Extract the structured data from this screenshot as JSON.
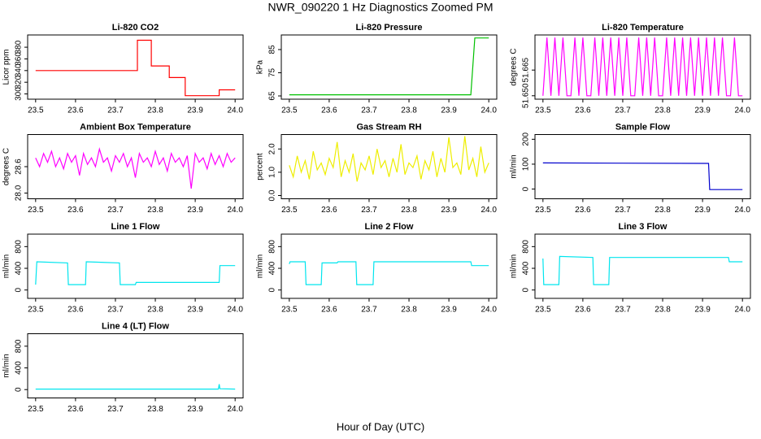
{
  "title": "NWR_090220  1 Hz Diagnostics Zoomed PM",
  "xlabel": "Hour of Day (UTC)",
  "chart_data": [
    {
      "type": "line",
      "title": "Li-820 CO2",
      "ylabel": "Licor ppm",
      "color": "#ff0000",
      "xlim": [
        23.48,
        24.02
      ],
      "xticks": [
        23.5,
        23.6,
        23.7,
        23.8,
        23.9,
        {
          "value": 24,
          "label": "24.0"
        }
      ],
      "ylim": [
        291,
        401
      ],
      "yticks": [
        300,
        320,
        340,
        360,
        380
      ],
      "x": [
        23.5,
        23.755,
        23.755,
        23.79,
        23.79,
        23.835,
        23.835,
        23.875,
        23.875,
        23.96,
        23.96,
        24.0
      ],
      "values": [
        340,
        340,
        392,
        392,
        348,
        348,
        328,
        328,
        297,
        297,
        307,
        307
      ]
    },
    {
      "type": "line",
      "title": "Li-820 Pressure",
      "ylabel": "kPa",
      "color": "#00c000",
      "xlim": [
        23.48,
        24.02
      ],
      "xticks": [
        23.5,
        23.6,
        23.7,
        23.8,
        23.9,
        {
          "value": 24,
          "label": "24.0"
        }
      ],
      "ylim": [
        63.6,
        91.3
      ],
      "yticks": [
        65,
        75,
        85
      ],
      "x": [
        23.5,
        23.955,
        23.965,
        24.0
      ],
      "values": [
        65.5,
        65.5,
        90,
        90
      ]
    },
    {
      "type": "line",
      "title": "Li-820 Temperature",
      "ylabel": "degrees C",
      "color": "#ff00ff",
      "xlim": [
        23.48,
        24.02
      ],
      "xticks": [
        23.5,
        23.6,
        23.7,
        23.8,
        23.9,
        {
          "value": 24,
          "label": "24.0"
        }
      ],
      "ylim": [
        51.648,
        51.6855
      ],
      "yticks": [
        {
          "value": 51.65,
          "label": "51.650"
        },
        {
          "value": 51.665,
          "label": "51.665"
        }
      ],
      "x": [
        23.5,
        23.51,
        23.52,
        23.53,
        23.54,
        23.55,
        23.56,
        23.57,
        23.58,
        23.59,
        23.6,
        23.61,
        23.62,
        23.63,
        23.64,
        23.65,
        23.66,
        23.67,
        23.68,
        23.69,
        23.7,
        23.71,
        23.72,
        23.73,
        23.74,
        23.75,
        23.76,
        23.77,
        23.78,
        23.79,
        23.8,
        23.81,
        23.82,
        23.83,
        23.84,
        23.85,
        23.86,
        23.87,
        23.88,
        23.89,
        23.9,
        23.91,
        23.92,
        23.93,
        23.94,
        23.95,
        23.96,
        23.97,
        23.98,
        23.99,
        24.0
      ],
      "values": [
        51.65,
        51.684,
        51.65,
        51.684,
        51.65,
        51.684,
        51.65,
        51.65,
        51.684,
        51.65,
        51.684,
        51.65,
        51.65,
        51.684,
        51.65,
        51.684,
        51.65,
        51.684,
        51.65,
        51.684,
        51.65,
        51.684,
        51.65,
        51.65,
        51.684,
        51.65,
        51.684,
        51.65,
        51.684,
        51.65,
        51.65,
        51.684,
        51.65,
        51.684,
        51.65,
        51.684,
        51.65,
        51.684,
        51.65,
        51.684,
        51.65,
        51.684,
        51.65,
        51.684,
        51.65,
        51.684,
        51.65,
        51.65,
        51.684,
        51.65,
        51.65
      ]
    },
    {
      "type": "line",
      "title": "Ambient Box Temperature",
      "ylabel": "degrees C",
      "color": "#ff00ff",
      "xlim": [
        23.48,
        24.02
      ],
      "xticks": [
        23.5,
        23.6,
        23.7,
        23.8,
        23.9,
        {
          "value": 24,
          "label": "24.0"
        }
      ],
      "ylim": [
        27.87,
        29.33
      ],
      "yticks": [
        {
          "value": 28,
          "label": "28.0"
        },
        28.6
      ],
      "x": [
        23.5,
        23.51,
        23.52,
        23.53,
        23.54,
        23.55,
        23.56,
        23.57,
        23.58,
        23.59,
        23.6,
        23.61,
        23.62,
        23.63,
        23.64,
        23.65,
        23.66,
        23.67,
        23.68,
        23.69,
        23.7,
        23.71,
        23.72,
        23.73,
        23.74,
        23.75,
        23.76,
        23.77,
        23.78,
        23.79,
        23.8,
        23.81,
        23.82,
        23.83,
        23.84,
        23.85,
        23.86,
        23.87,
        23.88,
        23.89,
        23.9,
        23.91,
        23.92,
        23.93,
        23.94,
        23.95,
        23.96,
        23.97,
        23.98,
        23.99,
        24.0
      ],
      "values": [
        28.8,
        28.6,
        28.9,
        28.7,
        28.95,
        28.6,
        28.8,
        28.55,
        28.9,
        28.7,
        28.85,
        28.4,
        28.9,
        28.65,
        28.8,
        28.6,
        29.0,
        28.7,
        28.8,
        28.5,
        28.85,
        28.7,
        28.9,
        28.6,
        28.8,
        28.35,
        28.9,
        28.7,
        28.8,
        28.6,
        28.95,
        28.65,
        28.8,
        28.5,
        28.9,
        28.7,
        28.8,
        28.6,
        28.85,
        28.1,
        28.9,
        28.7,
        28.8,
        28.55,
        28.9,
        28.65,
        28.85,
        28.6,
        28.9,
        28.7,
        28.8
      ]
    },
    {
      "type": "line",
      "title": "Gas Stream RH",
      "ylabel": "percent",
      "color": "#eeee00",
      "xlim": [
        23.48,
        24.02
      ],
      "xticks": [
        23.5,
        23.6,
        23.7,
        23.8,
        23.9,
        {
          "value": 24,
          "label": "24.0"
        }
      ],
      "ylim": [
        -0.14,
        2.62
      ],
      "yticks": [
        {
          "value": 0,
          "label": "0.0"
        },
        {
          "value": 1,
          "label": "1.0"
        },
        {
          "value": 2,
          "label": "2.0"
        }
      ],
      "x": [
        23.5,
        23.51,
        23.52,
        23.53,
        23.54,
        23.55,
        23.56,
        23.57,
        23.58,
        23.59,
        23.6,
        23.61,
        23.62,
        23.63,
        23.64,
        23.65,
        23.66,
        23.67,
        23.68,
        23.69,
        23.7,
        23.71,
        23.72,
        23.73,
        23.74,
        23.75,
        23.76,
        23.77,
        23.78,
        23.79,
        23.8,
        23.81,
        23.82,
        23.83,
        23.84,
        23.85,
        23.86,
        23.87,
        23.88,
        23.89,
        23.9,
        23.91,
        23.92,
        23.93,
        23.94,
        23.95,
        23.96,
        23.97,
        23.98,
        23.99,
        24.0
      ],
      "values": [
        1.3,
        0.8,
        1.7,
        1.0,
        1.5,
        0.7,
        1.9,
        1.1,
        1.4,
        0.9,
        1.6,
        1.2,
        2.3,
        0.8,
        1.5,
        1.0,
        1.8,
        0.6,
        1.4,
        1.1,
        1.7,
        0.9,
        2.0,
        1.2,
        1.5,
        0.8,
        1.6,
        1.0,
        2.2,
        0.9,
        1.4,
        1.2,
        1.7,
        0.7,
        1.5,
        1.1,
        1.9,
        0.8,
        1.6,
        1.0,
        2.5,
        1.2,
        1.4,
        0.9,
        2.55,
        1.1,
        1.6,
        0.8,
        2.1,
        1.0,
        1.4
      ]
    },
    {
      "type": "line",
      "title": "Sample Flow",
      "ylabel": "ml/min",
      "color": "#0000cd",
      "xlim": [
        23.48,
        24.02
      ],
      "xticks": [
        23.5,
        23.6,
        23.7,
        23.8,
        23.9,
        {
          "value": 24,
          "label": "24.0"
        }
      ],
      "ylim": [
        -39,
        219
      ],
      "yticks": [
        0,
        100,
        200
      ],
      "x": [
        23.5,
        23.915,
        23.918,
        24.0
      ],
      "values": [
        105,
        103,
        -2,
        -2
      ]
    },
    {
      "type": "line",
      "title": "Line 1 Flow",
      "ylabel": "ml/min",
      "color": "#00e5ee",
      "xlim": [
        23.48,
        24.02
      ],
      "xticks": [
        23.5,
        23.6,
        23.7,
        23.8,
        23.9,
        {
          "value": 24,
          "label": "24.0"
        }
      ],
      "ylim": [
        -154,
        1030
      ],
      "yticks": [
        0,
        400,
        800
      ],
      "x": [
        23.5,
        23.503,
        23.58,
        23.582,
        23.625,
        23.627,
        23.71,
        23.712,
        23.75,
        23.752,
        23.96,
        23.962,
        24.0
      ],
      "values": [
        100,
        520,
        500,
        100,
        100,
        520,
        500,
        100,
        100,
        140,
        140,
        450,
        450
      ]
    },
    {
      "type": "line",
      "title": "Line 2 Flow",
      "ylabel": "ml/min",
      "color": "#00e5ee",
      "xlim": [
        23.48,
        24.02
      ],
      "xticks": [
        23.5,
        23.6,
        23.7,
        23.8,
        23.9,
        {
          "value": 24,
          "label": "24.0"
        }
      ],
      "ylim": [
        -154,
        1030
      ],
      "yticks": [
        0,
        400,
        800
      ],
      "x": [
        23.5,
        23.502,
        23.54,
        23.542,
        23.58,
        23.582,
        23.62,
        23.622,
        23.667,
        23.669,
        23.71,
        23.712,
        23.955,
        23.957,
        24.0
      ],
      "values": [
        480,
        520,
        520,
        100,
        100,
        500,
        500,
        520,
        520,
        100,
        100,
        520,
        520,
        450,
        450
      ]
    },
    {
      "type": "line",
      "title": "Line 3 Flow",
      "ylabel": "ml/min",
      "color": "#00e5ee",
      "xlim": [
        23.48,
        24.02
      ],
      "xticks": [
        23.5,
        23.6,
        23.7,
        23.8,
        23.9,
        {
          "value": 24,
          "label": "24.0"
        }
      ],
      "ylim": [
        -154,
        1030
      ],
      "yticks": [
        0,
        400,
        800
      ],
      "x": [
        23.5,
        23.502,
        23.504,
        23.54,
        23.542,
        23.625,
        23.627,
        23.665,
        23.667,
        23.965,
        23.967,
        24.0
      ],
      "values": [
        580,
        100,
        100,
        100,
        620,
        600,
        100,
        100,
        600,
        600,
        520,
        520
      ]
    },
    {
      "type": "line",
      "title": "Line 4 (LT) Flow",
      "ylabel": "ml/min",
      "color": "#00e5ee",
      "xlim": [
        23.48,
        24.02
      ],
      "xticks": [
        23.5,
        23.6,
        23.7,
        23.8,
        23.9,
        {
          "value": 24,
          "label": "24.0"
        }
      ],
      "ylim": [
        -154,
        1030
      ],
      "yticks": [
        0,
        400,
        800
      ],
      "x": [
        23.5,
        23.958,
        23.96,
        23.962,
        24.0
      ],
      "values": [
        10,
        10,
        100,
        15,
        10
      ]
    }
  ]
}
